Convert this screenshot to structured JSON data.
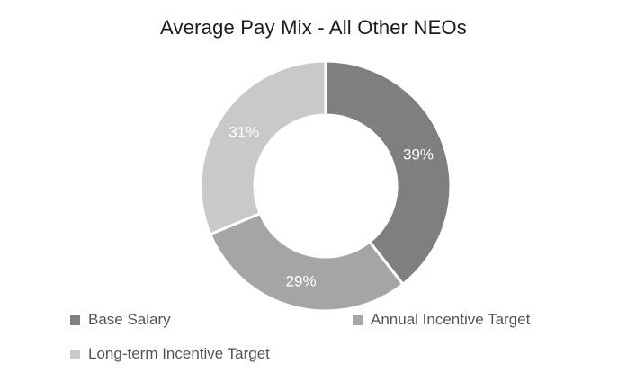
{
  "chart_data": {
    "type": "pie",
    "title": "Average Pay Mix - All Other NEOs",
    "categories": [
      "Base Salary",
      "Annual Incentive Target",
      "Long-term Incentive Target"
    ],
    "values": [
      39,
      29,
      31
    ],
    "data_labels": [
      "39%",
      "29%",
      "31%"
    ],
    "colors": [
      "#7f7f7f",
      "#a5a5a5",
      "#c9c9c9"
    ],
    "hole": "donut",
    "legend_position": "bottom"
  }
}
